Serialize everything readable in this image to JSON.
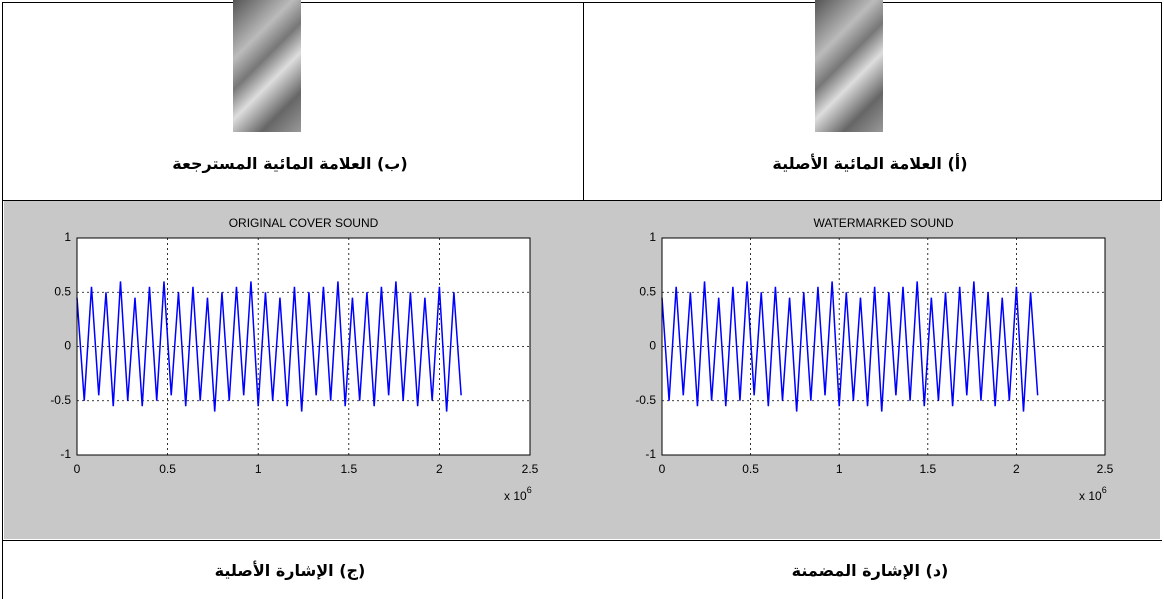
{
  "captions": {
    "b": "(ب) العلامة المائية المسترجعة",
    "a": "(أ) العلامة المائية الأصلية",
    "c": "(ج) الإشارة الأصلية",
    "d": "(د) الإشارة المضمنة"
  },
  "chart_data": [
    {
      "type": "line",
      "title": "ORIGINAL COVER SOUND",
      "x": [
        0,
        0.04,
        0.08,
        0.12,
        0.16,
        0.2,
        0.24,
        0.28,
        0.32,
        0.36,
        0.4,
        0.44,
        0.48,
        0.52,
        0.56,
        0.6,
        0.64,
        0.68,
        0.72,
        0.76,
        0.8,
        0.84,
        0.88,
        0.92,
        0.96,
        1.0,
        1.04,
        1.08,
        1.12,
        1.16,
        1.2,
        1.24,
        1.28,
        1.32,
        1.36,
        1.4,
        1.44,
        1.48,
        1.52,
        1.56,
        1.6,
        1.64,
        1.68,
        1.72,
        1.76,
        1.8,
        1.84,
        1.88,
        1.92,
        1.96,
        2.0,
        2.04,
        2.08,
        2.12
      ],
      "values": [
        0.45,
        -0.5,
        0.55,
        -0.45,
        0.5,
        -0.55,
        0.6,
        -0.5,
        0.45,
        -0.55,
        0.55,
        -0.5,
        0.6,
        -0.45,
        0.5,
        -0.55,
        0.55,
        -0.5,
        0.45,
        -0.6,
        0.5,
        -0.5,
        0.55,
        -0.45,
        0.6,
        -0.55,
        0.5,
        -0.5,
        0.45,
        -0.55,
        0.55,
        -0.6,
        0.5,
        -0.45,
        0.55,
        -0.5,
        0.6,
        -0.55,
        0.45,
        -0.5,
        0.5,
        -0.55,
        0.55,
        -0.45,
        0.6,
        -0.5,
        0.5,
        -0.55,
        0.45,
        -0.5,
        0.55,
        -0.6,
        0.5,
        -0.45
      ],
      "color": "#0000ff",
      "xlim": [
        0,
        2.5
      ],
      "xticks": [
        0,
        0.5,
        1,
        1.5,
        2,
        2.5
      ],
      "ylim": [
        -1,
        1
      ],
      "yticks": [
        -1,
        -0.5,
        0,
        0.5,
        1
      ],
      "grid": true,
      "x_multiplier": {
        "base": "x 10",
        "exponent": "6"
      }
    },
    {
      "type": "line",
      "title": "WATERMARKED SOUND",
      "x": [
        0,
        0.04,
        0.08,
        0.12,
        0.16,
        0.2,
        0.24,
        0.28,
        0.32,
        0.36,
        0.4,
        0.44,
        0.48,
        0.52,
        0.56,
        0.6,
        0.64,
        0.68,
        0.72,
        0.76,
        0.8,
        0.84,
        0.88,
        0.92,
        0.96,
        1.0,
        1.04,
        1.08,
        1.12,
        1.16,
        1.2,
        1.24,
        1.28,
        1.32,
        1.36,
        1.4,
        1.44,
        1.48,
        1.52,
        1.56,
        1.6,
        1.64,
        1.68,
        1.72,
        1.76,
        1.8,
        1.84,
        1.88,
        1.92,
        1.96,
        2.0,
        2.04,
        2.08,
        2.12
      ],
      "values": [
        0.45,
        -0.5,
        0.55,
        -0.45,
        0.5,
        -0.55,
        0.6,
        -0.5,
        0.45,
        -0.55,
        0.55,
        -0.5,
        0.6,
        -0.45,
        0.5,
        -0.55,
        0.55,
        -0.5,
        0.45,
        -0.6,
        0.5,
        -0.5,
        0.55,
        -0.45,
        0.6,
        -0.55,
        0.5,
        -0.5,
        0.45,
        -0.55,
        0.55,
        -0.6,
        0.5,
        -0.45,
        0.55,
        -0.5,
        0.6,
        -0.55,
        0.45,
        -0.5,
        0.5,
        -0.55,
        0.55,
        -0.45,
        0.6,
        -0.5,
        0.5,
        -0.55,
        0.45,
        -0.5,
        0.55,
        -0.6,
        0.5,
        -0.45
      ],
      "color": "#0000ff",
      "xlim": [
        0,
        2.5
      ],
      "xticks": [
        0,
        0.5,
        1,
        1.5,
        2,
        2.5
      ],
      "ylim": [
        -1,
        1
      ],
      "yticks": [
        -1,
        -0.5,
        0,
        0.5,
        1
      ],
      "grid": true,
      "x_multiplier": {
        "base": "x 10",
        "exponent": "6"
      }
    }
  ]
}
